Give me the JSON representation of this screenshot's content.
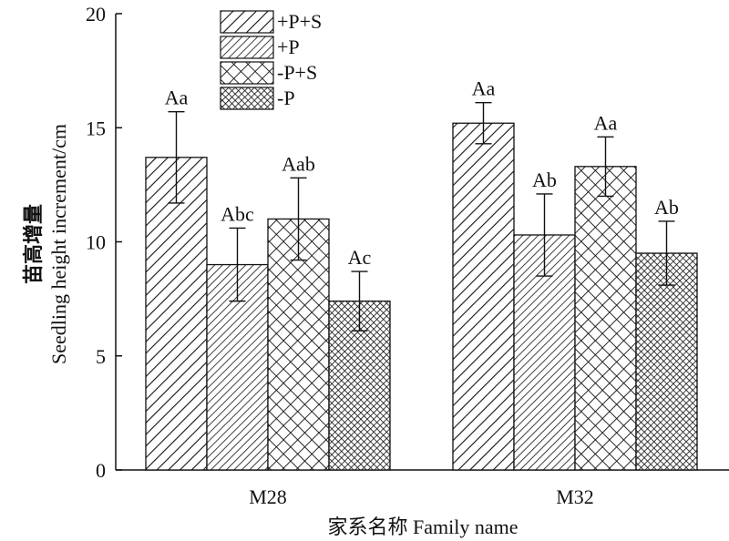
{
  "chart_data": {
    "type": "bar",
    "categories": [
      "M28",
      "M32"
    ],
    "series": [
      {
        "name": "+P+S",
        "pattern": "hatch-wide",
        "values": [
          13.7,
          15.2
        ],
        "errors": [
          2.0,
          0.9
        ],
        "labels": [
          "Aa",
          "Aa"
        ]
      },
      {
        "name": "+P",
        "pattern": "hatch-dense",
        "values": [
          9.0,
          10.3
        ],
        "errors": [
          1.6,
          1.8
        ],
        "labels": [
          "Abc",
          "Ab"
        ]
      },
      {
        "name": "-P+S",
        "pattern": "crosshatch",
        "values": [
          11.0,
          13.3
        ],
        "errors": [
          1.8,
          1.3
        ],
        "labels": [
          "Aab",
          "Aa"
        ]
      },
      {
        "name": "-P",
        "pattern": "dense-grid",
        "values": [
          7.4,
          9.5
        ],
        "errors": [
          1.3,
          1.4
        ],
        "labels": [
          "Ac",
          "Ab"
        ]
      }
    ],
    "ylim": [
      0,
      20
    ],
    "yticks": [
      "0",
      "5",
      "10",
      "15",
      "20"
    ],
    "ylabel_cn": "苗高增量",
    "ylabel_en": "Seedling height increment/cm",
    "xlabel": "家系名称 Family name",
    "legend_position": "top-center",
    "grid": false
  }
}
